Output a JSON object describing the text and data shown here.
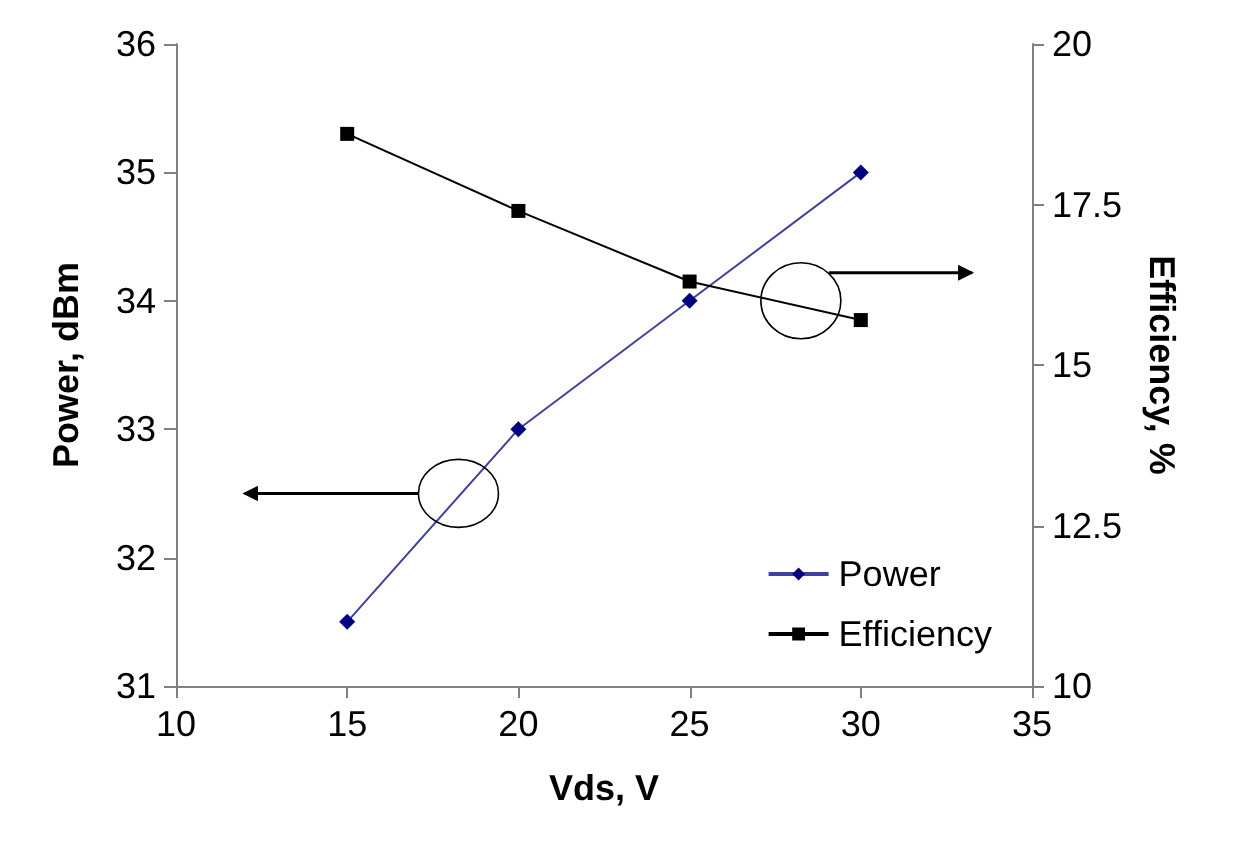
{
  "chart_data": {
    "type": "line",
    "xlabel": "Vds, V",
    "ylabel": "Power, dBm",
    "y2label": "Efficiency, %",
    "x": [
      15,
      20,
      25,
      30
    ],
    "series": [
      {
        "name": "Power",
        "color": "#000080",
        "marker": "diamond",
        "values": [
          31.5,
          33,
          34,
          35
        ]
      },
      {
        "name": "Efficiency",
        "color": "#000000",
        "marker": "square",
        "axis": "y2",
        "values": [
          18.6,
          17.4,
          16.3,
          15.7
        ]
      }
    ],
    "xlim": [
      10,
      35
    ],
    "xticks": [
      10,
      15,
      20,
      25,
      30,
      35
    ],
    "ylim": [
      31,
      36
    ],
    "yticks": [
      31,
      32,
      33,
      34,
      35,
      36
    ],
    "y2lim": [
      10,
      20
    ],
    "y2ticks": [
      10,
      12.5,
      15,
      17.5,
      20
    ],
    "grid": false,
    "legend": "bottom right",
    "line_style": "solid"
  }
}
